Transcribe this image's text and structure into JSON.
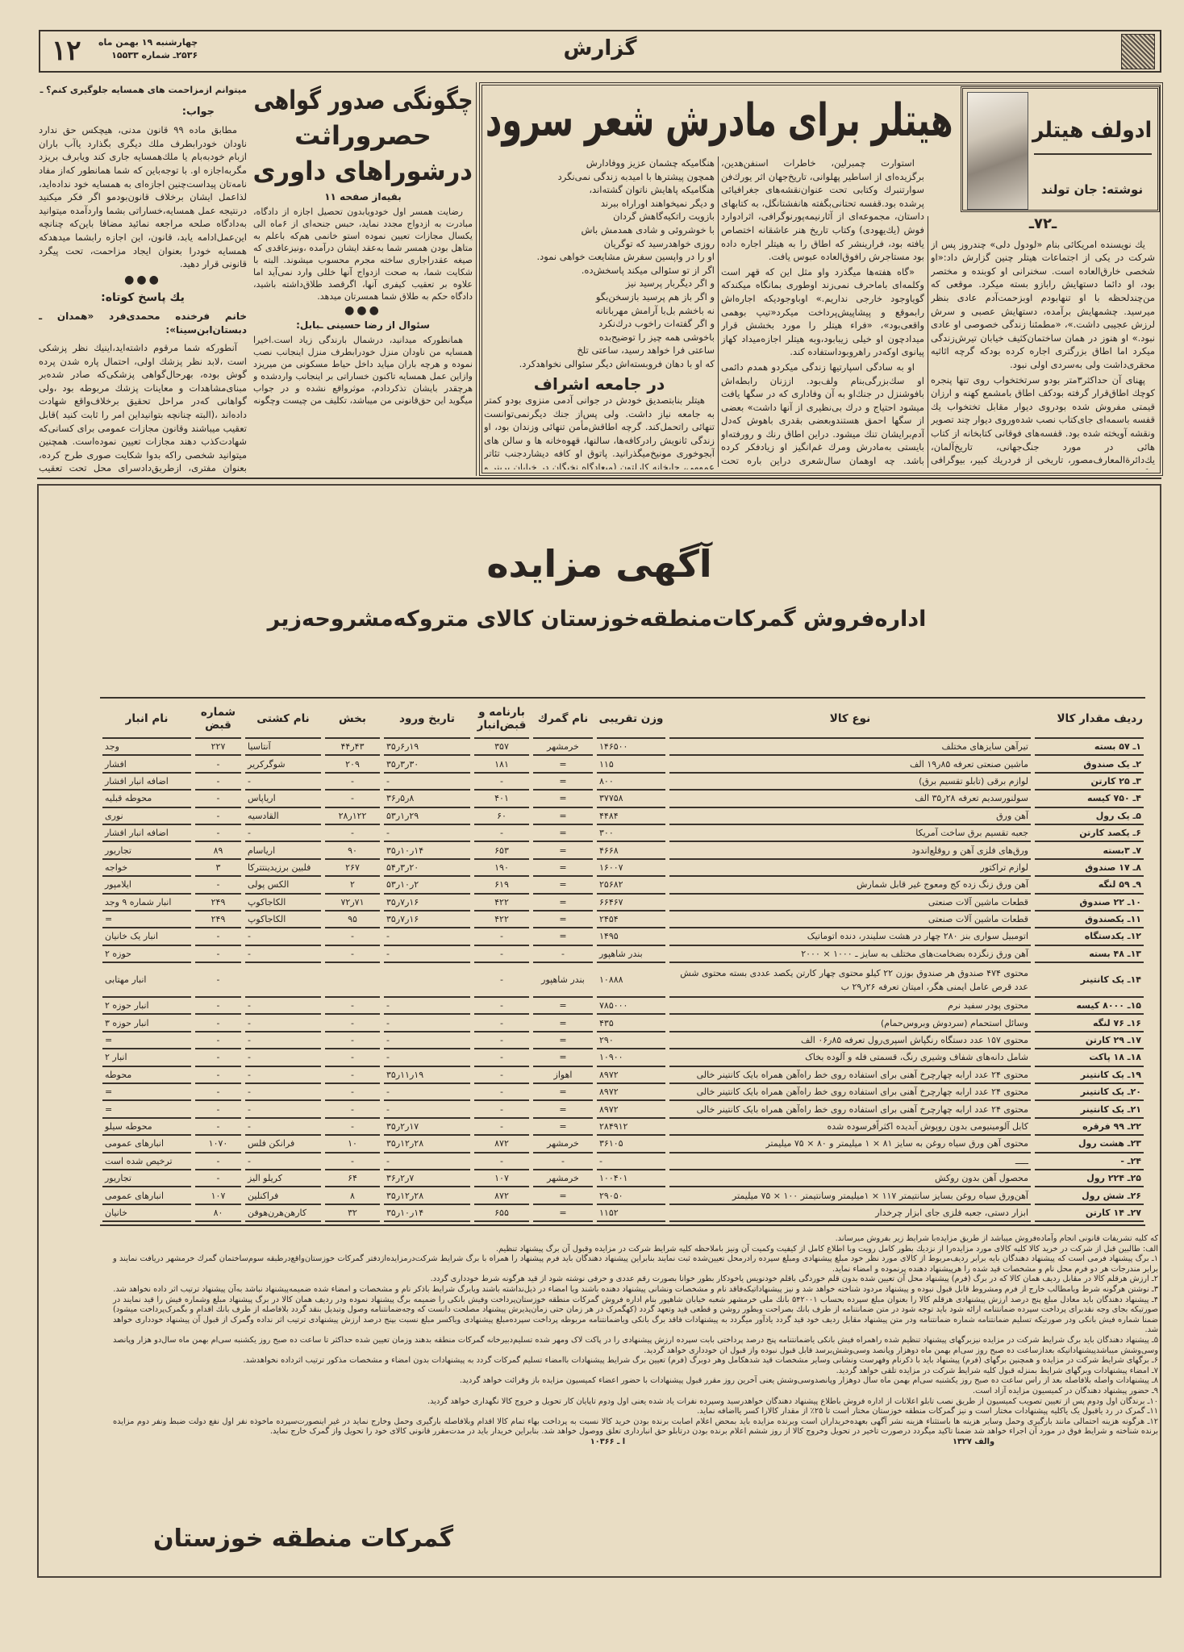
{
  "header": {
    "page_number": "۱۲",
    "date_line": "چهارشنبه ۱۹ بهمن ماه",
    "issue_line": "۲۵۳۶ـ شماره ۱۵۵۳۳",
    "section_title": "گزارش"
  },
  "qa_column": {
    "question": "میتوانم ازمزاحمت های همسایه جلوگیری کنم؟ ـ",
    "answer_label": "جواب:",
    "answer_text": "مطابق ماده ۹۹ قانون مدنی، هیچکس حق ندارد ناودان خودرابطرف ملك دیگری بگذارد یاآب باران ازبام خودبه‌بام یا ملك‌همسایه جاری کند ویابرف بریزد مگربه‌اجازه او. با توجه‌باین که شما همانطور که‌از مفاد نامه‌تان پیداست‌چنین اجازه‌ای به همسایه خود نداده‌اید، لذاعمل ایشان برخلاف قانون‌بودمو اگر فکر میکنید درنتیجه عمل همسایه،خساراتی بشما وارد‌آمده میتوانید به‌دادگاه صلحه مراجعه نمائید مضافا باین‌که چنانچه این‌عمل‌ادامه یابد، قانون، این اجازه رابشما میدهدکه همسایه خودرا بعنوان ایجاد مزاحمت، تحت پیگرد قانونی قرار دهید.",
    "dots": "●●●",
    "short_answer_title": "یك پاسخ کوتاه:",
    "short_answer_to": "خانم فرخنده محمدی‌فرد «همدان ـ دبستان‌ابن‌سینا»:",
    "short_answer_text": "آنطورکه شما مرقوم داشته‌اید،اینیك نظر پزشکی است ،لابد نظر پزشك اولی، احتمال پاره شدن پرده گوش بوده، بهرحال‌گواهی پزشکی‌که صادر شده‌بر مبنای‌مشاهدات و معاینات پزشك مربوطه بود ،ولی گواهانی که‌در مراحل تحقیق برخلاف‌واقع شهادت داده‌اند ،(البته چنانچه بتوانیداین امر را ثابت کنید )قابل تعقیب میباشند وقانون مجازات عمومی برای کسانی‌که شهادت‌کذب دهند مجازات تعیین نموده‌است. همچنین میتوانید شخصی راکه بدوا شکایت صوری طرح کرده، بعنوان مفتری، ازطریق‌دادسرای محل تحت تعقیب قانونی قرار دهید."
  },
  "certificate_article": {
    "headline_lines": [
      "چگونگی صدور گواهی",
      "حصروراثت",
      "درشوراهای داوری"
    ],
    "continued": "بقیه‌از صفحه ۱۱",
    "text": "رضایت همسر اول خودویابدون تحصیل اجازه از دادگاه، مبادرت به ازدواج مجدد نماید، حبس جنحه‌ای از ۶ماه الی یکسال مجازات تعیین نموده استو خانمی هم‌که باعلم به متاهل بودن همسر شما به‌عقد ایشان درآمده ،ونیزعاقدی که صیغه عقدراجاری ساخته مجرم محسوب میشوند. البته با شکایت شما، به صحت ازدواج آنها خللی وارد نمی‌آید اما علاوه بر تعقیب کیفری آنها، اگرقصد طلاق‌داشته باشید، دادگاه حکم به طلاق شما همسرتان میدهد.",
    "dots": "●●●",
    "question_title": "سئوال از رضا حسینی ـبابل:",
    "question_text": "همانطورکه میدانید، درشمال بارندگی زیاد است.اخیرا همسایه من ناودان منزل خودرابطرف منزل اینجانب نصب نموده و هرچه باران میاید داخل حیاط مسکونی من میریزد وازاین عمل همسایه تاکنون خساراتی بر اینجانب واردشده و هرچقدر بایشان تذکردادم، موثرواقع نشده و در جواب میگوید این حق‌قانونی من میباشد، تکلیف من چیست وچگونه"
  },
  "hitler_article": {
    "title": "هیتلر برای مادرش شعر سرود",
    "subject_name": "ادولف هیتلر",
    "byline": "نوشته: جان تولند",
    "episode": "ـ۷۲ـ",
    "right_column": [
      "یك نویسنده امریکائی بنام «لودول دلی» چندروز پس از شرکت در یکی از اجتماعات هیتلر چنین گزارش داد:«او شخصی خارق‌العاده است. سخنرانی او کوبنده و مختصر بود، او دائما دستهایش رابازو بسته میکرد. موقعی که من‌چندلحظه با او تنهابودم اوبزحمت‌آدم عادی بنظر میرسید. چشمهایش برآمده، دستهایش عصبی و سرش لرزش عجیبی داشت.»، «مطمئنا زندگی خصوصی او عادی نبود.» او هنوز در همان ساختمان‌کثیف خیابان تیرش‌زندگی میکرد اما اطاق بزرگتری اجاره کرده بودکه گرچه اثاثیه محقری‌داشت ولی به‌سردی اولی نبود.",
      "پهنای آن حداکثر۳متر بودو سرتختخواب روی تنها پنجره کوچك اطاق‌قرار گرفته بودکف اطاق بامشمع کهنه و ارزان قیمتی مفروش شده بودروی دیوار مقابل تختخواب یك قفسه باسمه‌ای جای‌کتاب نصب شده‌وروی دیوار چند تصویر ونقشه آویخته شده بود. قفسه‌های فوقانی کتابخانه از کتاب هائی در مورد جنگ‌جهانی، تاریخ‌آلمان، یك‌دائرة‌المعارف‌مصور، تاریخی از فردریك کبیر، بیوگرافی واگنر بقلم هوستون"
    ],
    "middle_column": [
      "استوارت چمبرلین، خاطرات اسنفن‌هدین، برگزیده‌ای از اساطیر پهلوانی، تاریخ‌جهان اثر یورك‌فن سوارتنبرك وکتابی تحت عنوان‌نقشه‌های جغرافیائی پرشده بود.قفسه تحتانی‌بگفته هانفشتانگل، به کتابهای داستان، مجموعه‌ای از آثارنیمه‌پورنوگرافی، اثرادوارد فوش (یك‌یهودی) وکتاب تاریخ هنر عاشقانه اختصاص یافته بود، فرارینشر که اطاق را به هیتلر اجاره داده بود مستاجرش رافوق‌العاده عبوس یافت.",
      "«گاه هفته‌ها میگذرد واو مثل این که قهر است وکلمه‌ای باماحرف نمی‌زند اوطوری بمانگاه میکندکه گویاوجود خارجی نداریم.» اوباوجودیکه اجاره‌اش رابموقع و پیشاپیش‌پرداخت میکرد«تیپ بوهمی واقعی‌بود»، «فراء هیتلر را مورد بخشش قرار میدادچون او خیلی زیبابود،وبه هیتلر اجازه‌میداد کهاز پیانوی اوکه‌در راهروبوداستفاده کند.",
      "او به سادگی اسپارتیها زندگی میکردو همدم دائمی او سك‌بزرگی‌بنام ولف‌بود. اززنان رابطه‌اش بافوشنزل در جنك‌او به آن وفاداری که در سگها یافت میشود احتیاج و درك بی‌نظیری از آنها داشت» بعضی از سگها احمق هستندوبعضی بقدری باهوش که‌دل آدم‌برایشان تنك میشود. دراین اطاق رنك و رورفته‌او بایستی به‌مادرش ومرك غم‌انگیز او زیادفکر کرده باشد. چه اوهمان سال‌شعری دراین باره تحت عنوان«بو فکر کن»سرود. این‌شعر جدا ازسانتی‌مانتالیسم دقیقا روشنگر است:"
    ],
    "poem_start": [
      "هنگامیکه مادرت پیرتر شده‌است",
      "و تو بیشتر پابه سن گذاشته‌ای",
      "هنگامیکه چیزهای راحت‌وبی زحمت",
      "تبدیل به باری سنگین میگردد"
    ],
    "poem_continued": [
      "هنگامیکه چشمان عزیز ووفادارش",
      "همچون پیشترها با امیدبه زندگی نمی‌نگرد",
      "هنگامیکه پاهایش ناتوان گشته‌اند،",
      "و دیگر نمیخواهند اوراراه ببرند",
      "بازویت راتکیه‌گاهش گردان",
      "با خوشروئی و شادی همدمش باش",
      "روزی خواهدرسید که تو‌گریان",
      "او را در واپسین سفرش مشایعت خواهی نمود.",
      "اگر از تو سئوالی میکند پاسخش‌ده.",
      "و اگر دیگربار پرسید نیز",
      "و اگر باز هم پرسید بازسخن‌بگو",
      "نه باخشم بل‌با آرامش مهربانانه",
      "و اگر گفته‌ات راخوب درك‌نکرد",
      "باخوشی همه چیز را توضیح‌بده",
      "ساعتی فرا خواهد رسید، ساعتی تلخ",
      "که او با دهان فروبسته‌اش دیگر سئوالی نخواهدکرد."
    ],
    "subheading": "در جامعه اشراف",
    "left_column_text": "هیتلر بنابتصدیق خودش در جوانی آدمی منزوی بودو کمتر به جامعه نیاز داشت. ولی پس‌از جنك دیگرنمی‌توانست تنهائی راتحمل‌کند. گرچه اطاقش‌مأمن تنهائی وزندان بود، او زندگی ثانویش رادرکافه‌ها، سالنها، قهوه‌خانه ها و سالن های آبجوخوری مونیخ‌میگذرانید. پاتوق او کافه دیشارد‌جنب تئاتر عمومی، چایخانه کارلتون (میعادگاه نخبگان در خیابان برینر و کافه هك در خیابان گالری بود."
  },
  "auction_ad": {
    "title": "آگهی مزایده",
    "subtitle": "اداره‌فروش گمرکات‌منطقه‌خوزستان کالای متروکه‌مشروحه‌زیر",
    "table": {
      "headers": [
        "ردیف مقدار کالا",
        "نوع کالا",
        "وزن تقریبی",
        "نام گمرك",
        "بارنامه و قبض‌انبار",
        "تاریخ ورود",
        "بخش",
        "نام کشتی",
        "شماره قبض",
        "نام انبار"
      ],
      "rows": [
        [
          "۱ـ ۵۷ بسته",
          "تیرآهن سایزهای مختلف",
          "۱۴۶۵۰۰",
          "خرمشهر",
          "۳۵۷",
          "۱۹ر۶ر۳۵",
          "۴۳ر۴۴",
          "آنتاسیا",
          "۲۲۷",
          "وجد"
        ],
        [
          "۲ـ یک صندوق",
          "ماشین صنعتی تعرفه ۸۵ر۱۹ الف",
          "۱۱۵",
          "=",
          "۱۸۱",
          "۳۰ر۳ر۳۵",
          "۲۰۹",
          "شوگرکریر",
          "-",
          "افشار"
        ],
        [
          "۳ـ ۲۵ کارتن",
          "لوازم برقی (تابلو تقسیم برق)",
          "۸۰۰",
          "=",
          "-",
          "-",
          "-",
          "-",
          "-",
          "اضافه انبار افشار"
        ],
        [
          "۴ـ ۷۵۰ کیسه",
          "سولنورسدیم تعرفه ۲۸ر۳۵ الف",
          "۳۷۷۵۸",
          "=",
          "۴۰۱",
          "۸ر۵ر۳۶",
          "-",
          "اریاپاس",
          "-",
          "محوطه قبلیه"
        ],
        [
          "۵ـ یک رول",
          "آهن ورق",
          "۴۴۸۴",
          "=",
          "۶۰",
          "۲۹ر۱ر۵۳",
          "۱۲۲ر۲۸",
          "القادسیه",
          "-",
          "نوری"
        ],
        [
          "۶ـ یکصد کارتن",
          "جعبه تقسیم برق ساخت آمریکا",
          "۳۰۰",
          "=",
          "-",
          "-",
          "-",
          "-",
          "-",
          "اضافه انبار افشار"
        ],
        [
          "۷ـ ۳بسته",
          "ورق‌های فلزی آهن و روقلع‌اندود",
          "۴۶۶۸",
          "=",
          "۶۵۳",
          "۱۴ر۱۰ر۳۵",
          "۹۰",
          "اریاسام",
          "۸۹",
          "تجاریور"
        ],
        [
          "۸ـ ۱۷ صندوق",
          "لوازم تراکتور",
          "۱۶۰۰۷",
          "=",
          "۱۹۰",
          "۲۰ر۳ر۵۴",
          "۲۶۷",
          "فلبین برزیدینتترکا",
          "۳",
          "خواجه"
        ],
        [
          "۹ـ ۵۹ لنگه",
          "آهن ورق زنگ زده کج ومعوج غیر قابل شمارش",
          "۲۵۶۸۲",
          "=",
          "۶۱۹",
          "۲ر۱۰ر۵۳",
          "۲",
          "الکس پولی",
          "-",
          "ایلامپور"
        ],
        [
          "۱۰ـ ۲۲ صندوق",
          "قطعات ماشین آلات صنعتی",
          "۶۶۴۶۷",
          "=",
          "۴۲۲",
          "۱۶ر۷ر۳۵",
          "۷۱ر۷۲",
          "الکاجاکوپ",
          "۲۴۹",
          "انبار شماره ۹ وجد"
        ],
        [
          "۱۱ـ یکصندوق",
          "قطعات ماشین آلات صنعتی",
          "۲۴۵۴",
          "=",
          "۴۲۲",
          "۱۶ر۷ر۳۵",
          "۹۵",
          "الکاجاکوپ",
          "۲۴۹",
          "="
        ],
        [
          "۱۲ـ یکدستگاه",
          "اتومبیل سواری بنز ۲۸۰ چهار در هشت سلیندر، دنده اتوماتیک",
          "۱۴۹۵",
          "=",
          "-",
          "-",
          "-",
          "-",
          "-",
          "انبار یک خانیان"
        ],
        [
          "۱۳ـ ۴۸ بسته",
          "آهن ورق زنگزده بضخامت‌های مختلف به سایز ـ ۱۰۰۰ × ۲۰۰۰",
          "بندر شاهپور",
          "-",
          "-",
          "-",
          "-",
          "-",
          "-",
          "حوزه ۲"
        ],
        [
          "۱۴ـ یک کانتینر",
          "محتوی ۴۷۴ صندوق هر صندوق بوزن ۲۲ کیلو محتوی چهار کارتن یکصد عددی بسته محتوی شش عدد قرص عامل ایمنی هگر، امیتان تعرفه ۲۶ر۲۹ ب",
          "۱۰۸۸۸",
          "بندر شاهپور",
          "-",
          "",
          "",
          "",
          "-",
          "انبار مهتابی"
        ],
        [
          "۱۵ـ ۸۰۰۰ کیسه",
          "محتوی پودر سفید نرم",
          "۷۸۵۰۰۰",
          "=",
          "-",
          "-",
          "-",
          "-",
          "-",
          "انبار حوزه ۲"
        ],
        [
          "۱۶ـ ۷۶ لنگه",
          "وسائل استحمام (سردوش وبروس‌حمام)",
          "۴۳۵",
          "=",
          "-",
          "-",
          "-",
          "-",
          "-",
          "انبار حوزه ۳"
        ],
        [
          "۱۷ـ ۲۹ کارتن",
          "محتوی ۱۵۷ عدد دستگاه رنگپاش اسپری‌رول تعرفه ۸۵ر۰۶ الف",
          "۲۹۰",
          "=",
          "-",
          "-",
          "-",
          "-",
          "-",
          "="
        ],
        [
          "۱۸ـ ۱۸ پاکت",
          "شامل دانه‌های شفاف وشیری رنگ، قسمتی فله و آلوده بخاک",
          "۱۰۹۰۰",
          "=",
          "-",
          "-",
          "-",
          "-",
          "-",
          "انبار ۲"
        ],
        [
          "۱۹ـ یک کانتینر",
          "محتوی ۲۴ عدد ارابه چهارچرخ آهنی برای استفاده روی خط راه‌آهن همراه بایک کانتینر خالی",
          "۸۹۷۲",
          "اهواز",
          "-",
          "۱۹ر۱۱ر۳۵",
          "-",
          "-",
          "-",
          "محوطه"
        ],
        [
          "۲۰ـ یک کانتینر",
          "محتوی ۲۴ عدد ارابه چهارچرخ آهنی برای استفاده روی خط راه‌آهن همراه بایک کانتینر خالی",
          "۸۹۷۲",
          "=",
          "-",
          "-",
          "-",
          "-",
          "-",
          "="
        ],
        [
          "۲۱ـ یک کانتینر",
          "محتوی ۲۴ عدد ارابه چهارچرخ آهنی برای استفاده روی خط راه‌آهن همراه بایک کانتینر خالی",
          "۸۹۷۲",
          "=",
          "-",
          "-",
          "-",
          "-",
          "-",
          "="
        ],
        [
          "۲۲ـ ۹۹ فرقره",
          "کابل آلومینیومی بدون روپوش آبدیده اکثراًفرسوده شده",
          "۲۸۴۹۱۲",
          "=",
          "-",
          "۱۷ر۲ر۳۵",
          "-",
          "-",
          "-",
          "محوطه سیلو"
        ],
        [
          "۲۳ـ هشت رول",
          "محتوی آهن ورق سیاه روغن به سایز ۸۱ × ۱ میلیمتر و ۸۰ × ۷۵ میلیمتر",
          "۳۶۱۰۵",
          "خرمشهر",
          "۸۷۲",
          "۲۸ر۱۲ر۳۵",
          "۱۰",
          "فرانکن فلس",
          "۱۰۷۰",
          "انبارهای عمومی"
        ],
        [
          "۲۴ـ -",
          "ـــــ",
          "-",
          "-",
          "-",
          "-",
          "-",
          "-",
          "-",
          "ترخیص شده است"
        ],
        [
          "۲۵ـ ۲۲۴ رول",
          "محصول آهن بدون روکش",
          "۱۰۰۴۰۱",
          "خرمشهر",
          "۱۰۷",
          "۷ر۲ر۳۶",
          "۶۴",
          "کریلو الیز",
          "-",
          "تجاریور"
        ],
        [
          "۲۶ـ شش رول",
          "آهن‌ورق سیاه روغن بسایز سانتیمتر ۱۱۷ × ۱میلیمتر وسانتیمتر ۱۰۰ × ۷۵ میلیمتر",
          "۲۹۰۵۰",
          "=",
          "۸۷۲",
          "۲۸ر۱۲ر۳۵",
          "۸",
          "فراکنلین",
          "۱۰۷",
          "انبارهای عمومی"
        ],
        [
          "۲۷ـ ۱۴ کارتن",
          "ابزار دستی، جعبه فلزی جای ابزار چرخدار",
          "۱۱۵۲",
          "=",
          "۶۵۵",
          "۱۴ر۱۰ر۳۵",
          "۳۲",
          "کارهن‌هرن‌هوفن",
          "۸۰",
          "خانیان"
        ]
      ]
    },
    "conditions": [
      "که کلیه تشریفات قانونی انجام وآماده‌فروش میباشد از طریق مزایده‌با شرایط زیر بفروش میرساند.",
      "الف: طالبین قبل از شرکت در خرید کالا کلیه کالای مورد مزایده‌را از نزدیك بطور کامل رویت وبا اطلاع کامل از کیفیت وکمیت آن ونیز باملاحظه کلیه شرایط شرکت در مزایده وقبول آن برگ پیشنهاد تنظیم.",
      "۱ـ برگ پیشنهاد فرمی است که پیشنهاد دهندگان بایه برابر ردیف‌مربوط از کالای مورد نظر خود مبلغ پیشنهادی ومبلغ سپرده رادرمحل تعیین‌شده ثبت نمایند بنابراین پیشنهاد دهندگان باید فرم پیشنهاد را همراه با برگ شرایط شرکت‌درمزایده‌ازدفتر گمرکات خوزستان‌واقع‌درطبقه سوم‌ساختمان گمرك خرمشهر دریافت نمایند و برابر مندرجات هر دو فرم محل نام و مشخصات قید شده را هرپیشنهاد دهنده پرنموده و امضاء نماید.",
      "۲ـ ارزش هرقلم کالا در مقابل ردیف همان کالا که در برگ (فرم) پیشنهاد محل آن تعیین شده بدون قلم خوردگی باقلم خودنویس یاخودکار بطور خوانا بصورت رقم عددی و حرفی نوشته شود از قید هرگونه شرط خودداری گردد.",
      "۳ـ نوشتن هرگونه شرط ویامطالب خارج از فرم ومشروط قابل قبول نبوده و پیشنهاد مردود شناخته خواهد شد و نیز پیشنهاداتیکه‌فاقد نام و مشخصات ونشانی پیشنهاد دهنده باشند ویا امضاء در ذیل‌نداشته باشند ویابرگ شرایط باذکر نام و مشخصات و امضاء شده ضمیمه‌پیشنهاد نباشد به‌آن پیشنهاد ترتیب اثر داده نخواهد شد.",
      "۴ـ پیشنهاد دهندگان باید معادل مبلغ پنج درصد ارزش پیشنهادی هرقلم کالا را بعنوان مبلغ سپرده بحساب ۵۴۲۰۰۱ بانك ملی خرمشهر شعبه خیابان شاهپور بنام اداره فروش گمرکات منطقه خوزستان‌پرداخت وفیش بانکی را ضمیمه برگ پیشنهاد نموده ودر ردیف همان کالا در برگ پیشنهاد مبلغ وشماره فیش را قید نمایند در صورتیکه بجای وجه نقدبرای پرداخت سپرده ضمانتنامه ارائه شود باید توجه شود در متن ضمانتنامه از طرف بانك بصراحت وبطور روشن و قطعی قید وتعهد گردد (کهگمرک در هر زمان حتی زمان‌پذیرش پیشنهاد مصلحت دانست که وجه‌ضمانتنامه وصول وتبدیل بنقد گردد بلافاصله از طرف بانك اقدام و بگمرک‌پرداخت میشود) ضمنا شماره فیش بانکی ودر صورتیکه تسلیم ضمانتنامه شماره ضمانتنامه ودر متن پیشنهاد مقابل ردیف خود قید گردد یادآور میگردد به پیشنهادات فاقد برگ بانکی ویاضمانتنامه مربوطه پرداخت سپرده‌مبلغ پیشنهادی ویاکسر مبلغ نسبت بپنج درصد ارزش پیشنهادی ترتیب اثر نداده وگمرک از قبول آن پیشنهاد خودداری خواهد شد.",
      "۵ـ پیشنهاد دهندگان باید برگ شرایط شرکت در مزایده نیزبرگهای پیشنهاد تنظیم شده راهمراه فیش بانکی یاضمانتنامه پنج درصد پرداختی بابت سپرده ارزش پیشنهادی را در پاکت لاک ومهر شده تسلیم‌دبیرخانه گمرکات منطقه بدهند وزمان تعیین شده حداکثر تا ساعت ده صبح روز یکشنبه سی‌ام بهمن ماه سال‌دو هزار وپانصد وسی‌وشش میباشدپیشنهاداتیکه بعدازساعت ده صبح روز سی‌ام بهمن ماه دوهزار وپانصد وسی‌وشش‌برسد قابل قبول نبوده واز قبول ان خودداری خواهد گردید.",
      "۶ـ برگهای شرایط شرکت در مزایده و همچنین برگهای (فرم) پیشنهاد باید با ذکرنام وفهرست ونشانی وسایر مشخصات قید شدهکامل وهر دوبرگ (فرم) تعیین برگ شرایط پیشنهادات باامضاء تسلیم گمرکات گردد به پیشنهادات بدون امضاء و مشخصات مذکور ترتیب اثرداده نخواهدشد.",
      "۷ـ امضاء پیشنهادات وبرگهای شرایط بمنزله قبول کلیه شرایط شرکت در مزایده تلقی خواهد گردید.",
      "۸ـ پیشنهادات واصله بلافاصله بعد از راس ساعت ده صبح روز یکشنبه سی‌ام بهمن ماه سال دوهزار وپانصدوسی‌وشش یعنی آخرین روز مقرر قبول پیشنهادات با حضور اعضاء کمیسیون مزایده باز وقرائت خواهد گردید.",
      "۹ـ حضور پیشنهاد دهندگان در کمیسیون مزایده آزاد است.",
      "۱۰ـ برندگان اول ودوم پس از تعیین تصویب کمیسیون از طریق نصب تابلو اعلانات از اداره فروش باطلاع پیشنهاد دهندگان خواهدرسید وسپرده نفرات یاد شده یعنی اول ودوم تاپایان کار تحویل و خروج کالا نگهداری خواهد گردید.",
      "۱۱ـ گمرک در رد یاقبول یک یاکلیه پیشنهادات مختار است و نیز گمرکات منطقه خوزستان مختار است تا ۲۵٪ از مقدار کالارا کسر یااضافه نماید.",
      "۱۲ـ هرگونه هزینه احتمالی مانند بارگیری وحمل وسایر هزینه ها باستثناء هزینه نشر آگهی بعهده‌خریداران است وبرنده مزایده باید بمحض اعلام اصابت برنده بودن خرید کالا نسبت به پرداخت بهاء تمام کالا اقدام وبلافاصله بارگیری وحمل وخارج نماید در غیر اینصورت‌سپرده ماخوذه نفر اول نفع دولت ضبط ونفر دوم مزایده برنده شناخته و شرایط فوق در مورد آن اجراء خواهد شد ضمنا تاکید میگردد درصورت تاخیر در تحویل وخروج کالا از روز ششم اعلام برنده بودن درتابلو حق انبارداری تعلق ووصول خواهد شد. بنابراین خریدار باید در مدت‌مقرر قانونی کالای خود را تحویل واز گمرک خارج نماید."
    ],
    "ref_codes": [
      "والف ۱۳۲۷",
      "ا ـ ۱۰۳۶۶"
    ],
    "signature": "گمرکات منطقه خوزستان"
  }
}
